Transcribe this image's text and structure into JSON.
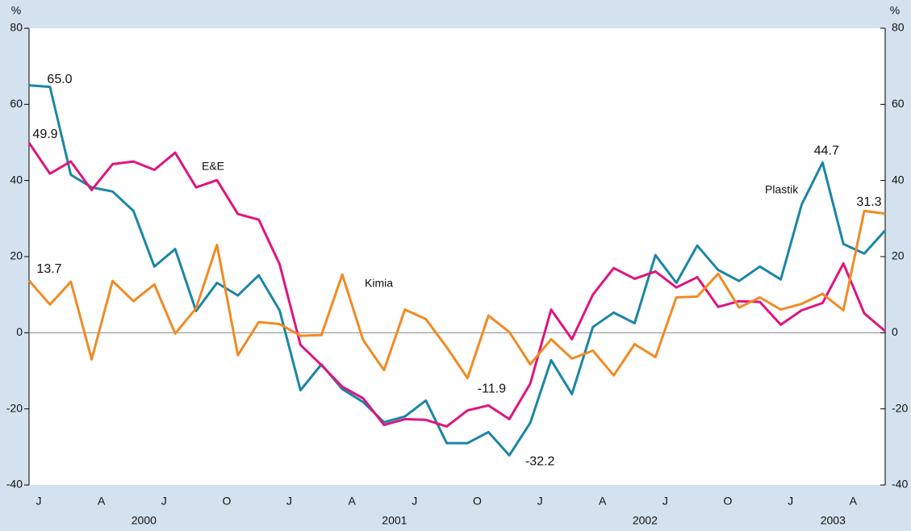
{
  "chart_data": {
    "type": "line",
    "y_label": "%",
    "y2_label": "%",
    "categories": [
      "J",
      null,
      null,
      "A",
      null,
      null,
      "J",
      null,
      null,
      "O",
      null,
      null,
      "J",
      null,
      null,
      "A",
      null,
      null,
      "J",
      null,
      null,
      "O",
      null,
      null,
      "J",
      null,
      null,
      "A",
      null,
      null,
      "J",
      null,
      null,
      "O",
      null,
      null,
      "J",
      null,
      null,
      "A",
      null,
      null
    ],
    "year_labels": [
      "2000",
      "2001",
      "2002",
      "2003"
    ],
    "series": [
      {
        "name": "Plastik",
        "color": "#1a86a6",
        "values": [
          65.0,
          64.6,
          41.5,
          38.2,
          37.1,
          32.0,
          17.4,
          22.0,
          5.7,
          13.1,
          9.8,
          15.1,
          5.9,
          -15.1,
          -8.3,
          -14.8,
          -18.2,
          -23.5,
          -22.0,
          -17.8,
          -29.0,
          -29.0,
          -26.1,
          -32.2,
          -23.7,
          -7.2,
          -16.1,
          1.5,
          5.3,
          2.5,
          20.4,
          13.1,
          22.9,
          16.5,
          13.6,
          17.4,
          14.0,
          33.7,
          44.7,
          23.3,
          20.8,
          26.9
        ],
        "value_labels": [
          "65.0",
          null,
          null,
          null,
          null,
          null,
          null,
          null,
          null,
          null,
          null,
          null,
          null,
          null,
          null,
          null,
          null,
          null,
          null,
          null,
          null,
          null,
          null,
          "-32.2",
          null,
          null,
          null,
          null,
          null,
          null,
          null,
          null,
          null,
          null,
          null,
          null,
          null,
          null,
          "44.7",
          null,
          null,
          null
        ]
      },
      {
        "name": "E&E",
        "color": "#e0147e",
        "values": [
          49.9,
          41.8,
          45.0,
          37.5,
          44.3,
          45.0,
          42.8,
          47.3,
          38.2,
          40.1,
          31.2,
          29.7,
          18.0,
          -3.2,
          -8.5,
          -14.2,
          -17.2,
          -24.2,
          -22.7,
          -22.9,
          -24.6,
          -20.4,
          -19.1,
          -22.7,
          -13.4,
          6.1,
          -1.7,
          10.0,
          17.0,
          14.2,
          16.1,
          11.9,
          14.6,
          6.8,
          8.3,
          8.1,
          2.1,
          5.9,
          7.8,
          18.2,
          5.1,
          0.4
        ],
        "value_labels": [
          "49.9",
          null,
          null,
          null,
          null,
          null,
          null,
          null,
          null,
          null,
          null,
          null,
          null,
          null,
          null,
          null,
          null,
          null,
          null,
          null,
          null,
          null,
          null,
          null,
          null,
          null,
          null,
          null,
          null,
          null,
          null,
          null,
          null,
          null,
          null,
          null,
          null,
          null,
          null,
          null,
          null,
          null
        ]
      },
      {
        "name": "Kimia",
        "color": "#f18a24",
        "values": [
          13.7,
          7.4,
          13.4,
          -7.0,
          13.6,
          8.3,
          12.7,
          -0.2,
          6.4,
          23.1,
          -5.9,
          2.8,
          2.3,
          -0.8,
          -0.6,
          15.3,
          -1.9,
          -9.8,
          6.1,
          3.6,
          -3.8,
          -11.9,
          4.5,
          0.2,
          -8.3,
          -1.7,
          -6.8,
          -4.7,
          -11.2,
          -3.0,
          -6.4,
          9.3,
          9.5,
          15.5,
          6.6,
          9.3,
          6.1,
          7.6,
          10.2,
          5.9,
          32.0,
          31.3
        ],
        "value_labels": [
          "13.7",
          null,
          null,
          null,
          null,
          null,
          null,
          null,
          null,
          null,
          null,
          null,
          null,
          null,
          null,
          null,
          null,
          null,
          null,
          null,
          null,
          "-11.9",
          null,
          null,
          null,
          null,
          null,
          null,
          null,
          null,
          null,
          null,
          null,
          null,
          null,
          null,
          null,
          null,
          null,
          null,
          null,
          "31.3"
        ]
      }
    ],
    "ylim": [
      -40,
      80
    ],
    "yticks": [
      -40,
      -20,
      0,
      20,
      40,
      60,
      80
    ],
    "y2lim": [
      -40,
      80
    ],
    "y2ticks": [
      -40,
      -20,
      0,
      20,
      40,
      60,
      80
    ],
    "grid": false
  }
}
